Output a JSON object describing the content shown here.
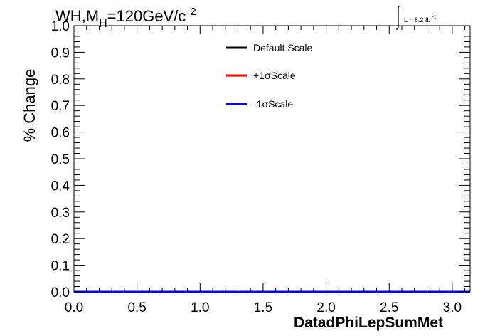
{
  "chart_data": {
    "type": "line",
    "title_main": "WH,M",
    "title_sub": "H",
    "title_rest": "=120GeV/c",
    "title_sup": "2",
    "lumi_text": "L = 8.2 fb",
    "lumi_sup": "-1",
    "xlabel": "DatadPhiLepSumMet",
    "ylabel": "% Change",
    "xlim": [
      0,
      3.14159
    ],
    "ylim": [
      0,
      1.0
    ],
    "x_ticks": [
      "0.0",
      "0.5",
      "1.0",
      "1.5",
      "2.0",
      "2.5",
      "3.0"
    ],
    "x_tick_values": [
      0,
      0.5,
      1.0,
      1.5,
      2.0,
      2.5,
      3.0
    ],
    "y_ticks": [
      "0.0",
      "0.1",
      "0.2",
      "0.3",
      "0.4",
      "0.5",
      "0.6",
      "0.7",
      "0.8",
      "0.9",
      "1.0"
    ],
    "y_tick_values": [
      0,
      0.1,
      0.2,
      0.3,
      0.4,
      0.5,
      0.6,
      0.7,
      0.8,
      0.9,
      1.0
    ],
    "legend_position": "top-center",
    "series": [
      {
        "name": "Default Scale",
        "color": "#000000",
        "x": [
          0,
          3.14159
        ],
        "y": [
          0,
          0
        ]
      },
      {
        "name": "+1σScale",
        "color": "#ff0000",
        "x": [
          0,
          3.14159
        ],
        "y": [
          0,
          0
        ]
      },
      {
        "name": "-1σScale",
        "color": "#0000ff",
        "x": [
          0,
          3.14159
        ],
        "y": [
          0,
          0
        ]
      }
    ]
  }
}
